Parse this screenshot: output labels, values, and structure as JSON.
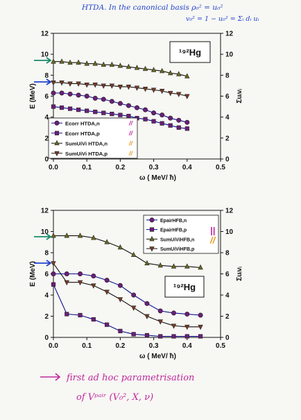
{
  "top_note_line1": "HTDA. In the canonical basis  ρ₀² = u₀²",
  "top_note_line2": "v₀² = 1 − u₀² = Σᵢ dᵢ uᵢ",
  "bottom_note_line1": "first ad hoc parametrisation",
  "bottom_note_line2": "of Vᵖᵃⁱʳ  (V₀², X, ν)",
  "colors": {
    "ink": "#111111",
    "navy": "#0a0a90",
    "purple": "#6a1e78",
    "olive": "#6b6a1c",
    "brown": "#7a3a20",
    "pen_magenta": "#c0289a",
    "pen_blue": "#2244cc",
    "pen_green": "#1a8a6a",
    "pen_orange": "#e59a20"
  },
  "chart_data": [
    {
      "type": "line",
      "title": "¹⁹²Hg",
      "xlabel": "ω ( MeV/ ħ)",
      "ylabel": "E (MeV)",
      "y2label": "Σuᵢvᵢ",
      "xlim": [
        0.0,
        0.5
      ],
      "ylim": [
        0,
        12
      ],
      "y2lim": [
        0,
        12
      ],
      "xticks": [
        "0.0",
        "0.1",
        "0.2",
        "0.3",
        "0.4",
        "0.5"
      ],
      "yticks": [
        "0",
        "2",
        "4",
        "6",
        "8",
        "10",
        "12"
      ],
      "grid": false,
      "legend": "bottom-left",
      "x": [
        0.0,
        0.025,
        0.05,
        0.075,
        0.1,
        0.125,
        0.15,
        0.175,
        0.2,
        0.225,
        0.25,
        0.275,
        0.3,
        0.325,
        0.35,
        0.375,
        0.4
      ],
      "series": [
        {
          "name": "Ecorr HTDA,n",
          "marker": "circle",
          "values": [
            6.3,
            6.3,
            6.2,
            6.1,
            6.0,
            5.8,
            5.7,
            5.5,
            5.3,
            5.1,
            4.9,
            4.7,
            4.4,
            4.2,
            3.9,
            3.7,
            3.5
          ]
        },
        {
          "name": "Ecorr HTDA,p",
          "marker": "square",
          "values": [
            5.0,
            4.9,
            4.8,
            4.7,
            4.6,
            4.5,
            4.4,
            4.3,
            4.2,
            4.1,
            3.9,
            3.8,
            3.6,
            3.4,
            3.2,
            3.0,
            2.9
          ]
        },
        {
          "name": "SumUiVi HTDA,n",
          "marker": "triangle-up",
          "values": [
            9.3,
            9.3,
            9.2,
            9.2,
            9.1,
            9.1,
            9.0,
            9.0,
            8.9,
            8.8,
            8.7,
            8.6,
            8.5,
            8.4,
            8.2,
            8.1,
            7.9
          ]
        },
        {
          "name": "SumUiVi HTDA,p",
          "marker": "triangle-down",
          "values": [
            7.3,
            7.3,
            7.2,
            7.2,
            7.1,
            7.1,
            7.0,
            7.0,
            6.9,
            6.9,
            6.8,
            6.7,
            6.6,
            6.5,
            6.3,
            6.2,
            6.0
          ]
        }
      ],
      "annotations": {
        "legend_pen_marks": [
          "//",
          "//",
          "//",
          "//"
        ]
      }
    },
    {
      "type": "line",
      "title": "¹⁹²Hg",
      "xlabel": "ω ( MeV/ ħ)",
      "ylabel": "E (MeV)",
      "y2label": "Σuᵢvᵢ",
      "xlim": [
        0.0,
        0.5
      ],
      "ylim": [
        0,
        12
      ],
      "y2lim": [
        0,
        12
      ],
      "xticks": [
        "0.0",
        "0.1",
        "0.2",
        "0.3",
        "0.4",
        "0.5"
      ],
      "yticks": [
        "0",
        "2",
        "4",
        "6",
        "8",
        "10",
        "12"
      ],
      "grid": false,
      "legend": "top-right",
      "x": [
        0.0,
        0.04,
        0.08,
        0.12,
        0.16,
        0.2,
        0.24,
        0.28,
        0.32,
        0.36,
        0.4,
        0.44
      ],
      "series": [
        {
          "name": "EpairHFB,n",
          "marker": "circle",
          "values": [
            6.0,
            6.0,
            6.0,
            5.8,
            5.4,
            4.9,
            4.0,
            3.2,
            2.5,
            2.3,
            2.2,
            2.1
          ]
        },
        {
          "name": "EpairHFB,p",
          "marker": "square",
          "values": [
            5.0,
            2.2,
            2.1,
            1.7,
            1.2,
            0.6,
            0.3,
            0.2,
            0.1,
            0.1,
            0.1,
            0.1
          ]
        },
        {
          "name": "SumUiViHFB,n",
          "marker": "triangle-up",
          "values": [
            9.6,
            9.6,
            9.6,
            9.4,
            9.0,
            8.5,
            7.8,
            7.0,
            6.8,
            6.7,
            6.7,
            6.6
          ]
        },
        {
          "name": "SumUiViHFB,p",
          "marker": "triangle-down",
          "values": [
            7.0,
            5.2,
            5.2,
            4.9,
            4.3,
            3.6,
            2.8,
            2.0,
            1.5,
            1.1,
            1.0,
            1.0
          ]
        }
      ],
      "annotations": {
        "legend_pen_marks": [
          "||",
          "//"
        ]
      }
    }
  ]
}
